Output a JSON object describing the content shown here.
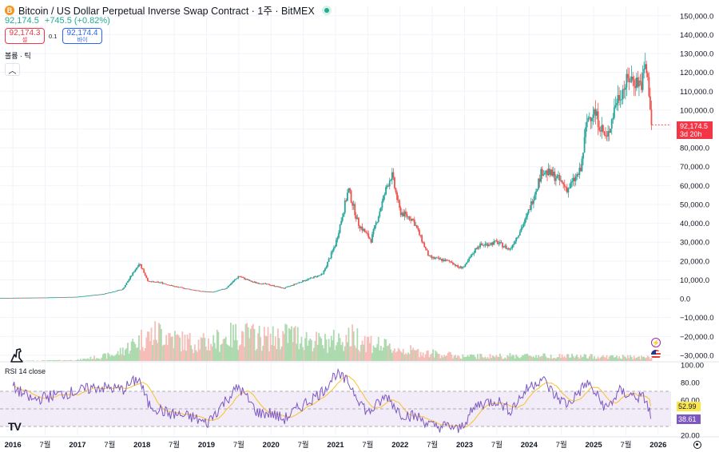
{
  "header": {
    "coin_icon": "B",
    "title": "Bitcoin / US Dollar Perpetual Inverse Swap Contract · 1주 · BitMEX",
    "price": "92,174.5",
    "change": "+745.5 (+0.82%)"
  },
  "trade": {
    "sell_price": "92,174.3",
    "sell_label": "셀",
    "spread": "0.1",
    "buy_price": "92,174.4",
    "buy_label": "바이"
  },
  "volume_label": "볼륨 · 틱",
  "rsi_label": "RSI 14 close",
  "logo_text": "TV",
  "last_price_tag": {
    "price": "92,174.5",
    "countdown": "3d 20h"
  },
  "rsi_tags": {
    "ma": "52.99",
    "rsi": "38.61"
  },
  "icons": [
    "bitcoin-icon",
    "live-status-icon",
    "chevron-up-icon",
    "dino-icon",
    "flash-event-icon",
    "us-flag-icon",
    "settings-icon"
  ],
  "colors": {
    "up": "#26a69a",
    "down": "#ef5350",
    "rsi_line": "#7e57c2",
    "rsi_ma": "#fbc02d",
    "rsi_band": "#ede7f6"
  },
  "chart_data": {
    "type": "candlestick",
    "price_axis": {
      "ticks": [
        150000,
        140000,
        130000,
        120000,
        110000,
        100000,
        90000,
        80000,
        70000,
        60000,
        50000,
        40000,
        30000,
        20000,
        10000,
        0,
        -10000,
        -20000,
        -30000
      ],
      "tick_labels": [
        "150,000.0",
        "140,000.0",
        "130,000.0",
        "120,000.0",
        "110,000.0",
        "100,000.0",
        "90,000.0",
        "80,000.0",
        "70,000.0",
        "60,000.0",
        "50,000.0",
        "40,000.0",
        "30,000.0",
        "20,000.0",
        "10,000.0",
        "0.0",
        "−10,000.0",
        "−20,000.0",
        "−30,000.0"
      ],
      "ylim": [
        -33000,
        155000
      ]
    },
    "time_axis": {
      "xlim": [
        2015.8,
        2026.2
      ],
      "ticks": [
        {
          "t": 2016.0,
          "label": "2016",
          "bold": true
        },
        {
          "t": 2016.5,
          "label": "7월",
          "bold": false
        },
        {
          "t": 2017.0,
          "label": "2017",
          "bold": true
        },
        {
          "t": 2017.5,
          "label": "7월",
          "bold": false
        },
        {
          "t": 2018.0,
          "label": "2018",
          "bold": true
        },
        {
          "t": 2018.5,
          "label": "7월",
          "bold": false
        },
        {
          "t": 2019.0,
          "label": "2019",
          "bold": true
        },
        {
          "t": 2019.5,
          "label": "7월",
          "bold": false
        },
        {
          "t": 2020.0,
          "label": "2020",
          "bold": true
        },
        {
          "t": 2020.5,
          "label": "7월",
          "bold": false
        },
        {
          "t": 2021.0,
          "label": "2021",
          "bold": true
        },
        {
          "t": 2021.5,
          "label": "7월",
          "bold": false
        },
        {
          "t": 2022.0,
          "label": "2022",
          "bold": true
        },
        {
          "t": 2022.5,
          "label": "7월",
          "bold": false
        },
        {
          "t": 2023.0,
          "label": "2023",
          "bold": true
        },
        {
          "t": 2023.5,
          "label": "7월",
          "bold": false
        },
        {
          "t": 2024.0,
          "label": "2024",
          "bold": true
        },
        {
          "t": 2024.5,
          "label": "7월",
          "bold": false
        },
        {
          "t": 2025.0,
          "label": "2025",
          "bold": true
        },
        {
          "t": 2025.5,
          "label": "7월",
          "bold": false
        },
        {
          "t": 2026.0,
          "label": "2026",
          "bold": true
        }
      ]
    },
    "price_keypoints": [
      {
        "t": 2015.8,
        "v": 400
      },
      {
        "t": 2016.5,
        "v": 650
      },
      {
        "t": 2017.0,
        "v": 1000
      },
      {
        "t": 2017.4,
        "v": 2500
      },
      {
        "t": 2017.7,
        "v": 5000
      },
      {
        "t": 2017.96,
        "v": 19000
      },
      {
        "t": 2018.1,
        "v": 9000
      },
      {
        "t": 2018.3,
        "v": 8500
      },
      {
        "t": 2018.5,
        "v": 6500
      },
      {
        "t": 2018.9,
        "v": 4000
      },
      {
        "t": 2019.1,
        "v": 3500
      },
      {
        "t": 2019.3,
        "v": 5500
      },
      {
        "t": 2019.5,
        "v": 12000
      },
      {
        "t": 2019.7,
        "v": 9000
      },
      {
        "t": 2020.0,
        "v": 7200
      },
      {
        "t": 2020.2,
        "v": 5500
      },
      {
        "t": 2020.5,
        "v": 9500
      },
      {
        "t": 2020.8,
        "v": 13000
      },
      {
        "t": 2021.0,
        "v": 29000
      },
      {
        "t": 2021.2,
        "v": 58000
      },
      {
        "t": 2021.35,
        "v": 40000
      },
      {
        "t": 2021.55,
        "v": 31000
      },
      {
        "t": 2021.8,
        "v": 60000
      },
      {
        "t": 2021.87,
        "v": 66000
      },
      {
        "t": 2022.0,
        "v": 46000
      },
      {
        "t": 2022.2,
        "v": 42000
      },
      {
        "t": 2022.45,
        "v": 22000
      },
      {
        "t": 2022.8,
        "v": 19500
      },
      {
        "t": 2022.9,
        "v": 16500
      },
      {
        "t": 2023.0,
        "v": 17000
      },
      {
        "t": 2023.2,
        "v": 28000
      },
      {
        "t": 2023.5,
        "v": 30000
      },
      {
        "t": 2023.7,
        "v": 26000
      },
      {
        "t": 2023.95,
        "v": 42000
      },
      {
        "t": 2024.2,
        "v": 68000
      },
      {
        "t": 2024.4,
        "v": 65000
      },
      {
        "t": 2024.6,
        "v": 58000
      },
      {
        "t": 2024.8,
        "v": 68000
      },
      {
        "t": 2024.9,
        "v": 95000
      },
      {
        "t": 2025.0,
        "v": 100000
      },
      {
        "t": 2025.2,
        "v": 84000
      },
      {
        "t": 2025.35,
        "v": 105000
      },
      {
        "t": 2025.55,
        "v": 117000
      },
      {
        "t": 2025.75,
        "v": 114000
      },
      {
        "t": 2025.8,
        "v": 124000
      },
      {
        "t": 2025.86,
        "v": 110000
      },
      {
        "t": 2025.9,
        "v": 92174
      }
    ],
    "volume_axis": {
      "ylim": [
        0,
        100
      ]
    },
    "volume_keypoints": [
      {
        "t": 2015.8,
        "v": 0
      },
      {
        "t": 2017.0,
        "v": 2
      },
      {
        "t": 2017.6,
        "v": 15
      },
      {
        "t": 2018.0,
        "v": 50
      },
      {
        "t": 2018.3,
        "v": 65
      },
      {
        "t": 2018.6,
        "v": 45
      },
      {
        "t": 2019.0,
        "v": 40
      },
      {
        "t": 2019.5,
        "v": 60
      },
      {
        "t": 2020.0,
        "v": 50
      },
      {
        "t": 2020.3,
        "v": 60
      },
      {
        "t": 2020.8,
        "v": 40
      },
      {
        "t": 2021.3,
        "v": 55
      },
      {
        "t": 2021.8,
        "v": 30
      },
      {
        "t": 2022.3,
        "v": 20
      },
      {
        "t": 2023.0,
        "v": 10
      },
      {
        "t": 2024.0,
        "v": 12
      },
      {
        "t": 2025.0,
        "v": 10
      },
      {
        "t": 2025.9,
        "v": 8
      }
    ],
    "rsi_axis": {
      "ylim": [
        20,
        100
      ],
      "ticks": [
        100,
        80,
        60,
        40,
        20
      ],
      "tick_labels": [
        "100.00",
        "80.00",
        "60.00",
        "40.00",
        "20.00"
      ],
      "band": [
        30,
        70
      ]
    },
    "rsi_keypoints": [
      {
        "t": 2016.0,
        "v": 75
      },
      {
        "t": 2016.3,
        "v": 60
      },
      {
        "t": 2016.6,
        "v": 65
      },
      {
        "t": 2017.0,
        "v": 70
      },
      {
        "t": 2017.3,
        "v": 75
      },
      {
        "t": 2017.7,
        "v": 72
      },
      {
        "t": 2017.95,
        "v": 85
      },
      {
        "t": 2018.1,
        "v": 55
      },
      {
        "t": 2018.4,
        "v": 45
      },
      {
        "t": 2018.8,
        "v": 40
      },
      {
        "t": 2019.0,
        "v": 33
      },
      {
        "t": 2019.3,
        "v": 60
      },
      {
        "t": 2019.5,
        "v": 75
      },
      {
        "t": 2019.8,
        "v": 45
      },
      {
        "t": 2020.0,
        "v": 45
      },
      {
        "t": 2020.2,
        "v": 38
      },
      {
        "t": 2020.5,
        "v": 55
      },
      {
        "t": 2020.8,
        "v": 70
      },
      {
        "t": 2021.0,
        "v": 90
      },
      {
        "t": 2021.2,
        "v": 80
      },
      {
        "t": 2021.5,
        "v": 45
      },
      {
        "t": 2021.8,
        "v": 65
      },
      {
        "t": 2022.0,
        "v": 45
      },
      {
        "t": 2022.3,
        "v": 40
      },
      {
        "t": 2022.5,
        "v": 30
      },
      {
        "t": 2022.8,
        "v": 30
      },
      {
        "t": 2022.9,
        "v": 25
      },
      {
        "t": 2023.2,
        "v": 55
      },
      {
        "t": 2023.5,
        "v": 60
      },
      {
        "t": 2023.7,
        "v": 48
      },
      {
        "t": 2024.0,
        "v": 75
      },
      {
        "t": 2024.2,
        "v": 85
      },
      {
        "t": 2024.4,
        "v": 65
      },
      {
        "t": 2024.6,
        "v": 55
      },
      {
        "t": 2024.9,
        "v": 80
      },
      {
        "t": 2025.2,
        "v": 50
      },
      {
        "t": 2025.4,
        "v": 70
      },
      {
        "t": 2025.6,
        "v": 65
      },
      {
        "t": 2025.8,
        "v": 62
      },
      {
        "t": 2025.9,
        "v": 38.61
      }
    ],
    "rsi_ma_last": 52.99,
    "rsi_last": 38.61
  }
}
